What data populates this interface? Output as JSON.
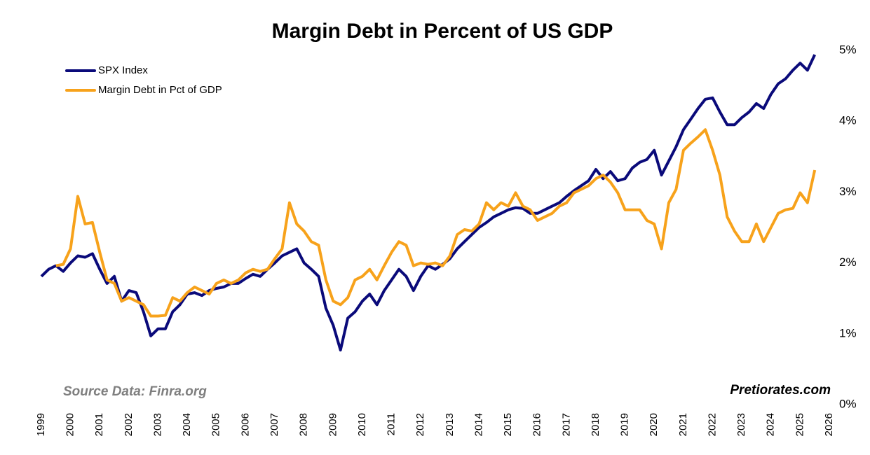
{
  "chart_data": {
    "type": "line",
    "title": "Margin Debt in Percent of US GDP",
    "annotations": [
      "Source Data: Finra.org",
      "Pretiorates.com"
    ],
    "legend": "top-left",
    "x": [
      1999,
      1999.25,
      1999.5,
      1999.75,
      2000,
      2000.25,
      2000.5,
      2000.75,
      2001,
      2001.25,
      2001.5,
      2001.75,
      2002,
      2002.25,
      2002.5,
      2002.75,
      2003,
      2003.25,
      2003.5,
      2003.75,
      2004,
      2004.25,
      2004.5,
      2004.75,
      2005,
      2005.25,
      2005.5,
      2005.75,
      2006,
      2006.25,
      2006.5,
      2006.75,
      2007,
      2007.25,
      2007.5,
      2007.75,
      2008,
      2008.25,
      2008.5,
      2008.75,
      2009,
      2009.25,
      2009.5,
      2009.75,
      2010,
      2010.25,
      2010.5,
      2010.75,
      2011,
      2011.25,
      2011.5,
      2011.75,
      2012,
      2012.25,
      2012.5,
      2012.75,
      2013,
      2013.25,
      2013.5,
      2013.75,
      2014,
      2014.25,
      2014.5,
      2014.75,
      2015,
      2015.25,
      2015.5,
      2015.75,
      2016,
      2016.25,
      2016.5,
      2016.75,
      2017,
      2017.25,
      2017.5,
      2017.75,
      2018,
      2018.25,
      2018.5,
      2018.75,
      2019,
      2019.25,
      2019.5,
      2019.75,
      2020,
      2020.25,
      2020.5,
      2020.75,
      2021,
      2021.25,
      2021.5,
      2021.75,
      2022,
      2022.25,
      2022.5,
      2022.75,
      2023,
      2023.25,
      2023.5,
      2023.75,
      2024,
      2024.25,
      2024.5,
      2024.75,
      2025,
      2025.25,
      2025.5
    ],
    "series": [
      {
        "name": "SPX Index",
        "color": "#0a0a7a",
        "values": [
          1.81,
          1.91,
          1.96,
          1.88,
          2.0,
          2.1,
          2.08,
          2.13,
          1.91,
          1.71,
          1.81,
          1.46,
          1.61,
          1.58,
          1.31,
          0.97,
          1.07,
          1.07,
          1.31,
          1.41,
          1.56,
          1.58,
          1.54,
          1.61,
          1.64,
          1.66,
          1.71,
          1.71,
          1.78,
          1.84,
          1.81,
          1.91,
          2.0,
          2.1,
          2.15,
          2.2,
          2.0,
          1.91,
          1.81,
          1.36,
          1.12,
          0.77,
          1.22,
          1.31,
          1.46,
          1.56,
          1.41,
          1.61,
          1.76,
          1.91,
          1.81,
          1.61,
          1.81,
          1.96,
          1.91,
          1.98,
          2.06,
          2.2,
          2.3,
          2.4,
          2.5,
          2.57,
          2.65,
          2.7,
          2.75,
          2.78,
          2.77,
          2.7,
          2.7,
          2.75,
          2.8,
          2.85,
          2.94,
          3.02,
          3.09,
          3.16,
          3.32,
          3.19,
          3.29,
          3.16,
          3.19,
          3.34,
          3.42,
          3.46,
          3.59,
          3.24,
          3.44,
          3.64,
          3.88,
          4.03,
          4.18,
          4.31,
          4.33,
          4.13,
          3.95,
          3.95,
          4.05,
          4.13,
          4.25,
          4.18,
          4.38,
          4.53,
          4.6,
          4.72,
          4.82,
          4.72,
          4.94
        ]
      },
      {
        "name": "Margin Debt in Pct of GDP",
        "color": "#f7a21b",
        "values": [
          null,
          null,
          1.96,
          1.98,
          2.2,
          2.94,
          2.55,
          2.57,
          2.15,
          1.76,
          1.71,
          1.46,
          1.51,
          1.46,
          1.41,
          1.25,
          1.25,
          1.26,
          1.51,
          1.46,
          1.58,
          1.66,
          1.61,
          1.56,
          1.71,
          1.76,
          1.71,
          1.76,
          1.86,
          1.91,
          1.88,
          1.91,
          2.06,
          2.2,
          2.85,
          2.55,
          2.45,
          2.3,
          2.25,
          1.76,
          1.46,
          1.41,
          1.51,
          1.76,
          1.81,
          1.91,
          1.76,
          1.96,
          2.15,
          2.3,
          2.25,
          1.96,
          2.0,
          1.98,
          2.0,
          1.96,
          2.1,
          2.4,
          2.47,
          2.45,
          2.55,
          2.85,
          2.75,
          2.85,
          2.8,
          2.99,
          2.8,
          2.75,
          2.6,
          2.65,
          2.7,
          2.8,
          2.85,
          2.99,
          3.04,
          3.09,
          3.19,
          3.24,
          3.14,
          2.99,
          2.75,
          2.75,
          2.75,
          2.6,
          2.55,
          2.2,
          2.85,
          3.04,
          3.59,
          3.69,
          3.78,
          3.88,
          3.59,
          3.24,
          2.65,
          2.45,
          2.3,
          2.3,
          2.55,
          2.3,
          2.5,
          2.7,
          2.75,
          2.77,
          2.99,
          2.85,
          3.31
        ]
      }
    ],
    "xlim": [
      1999,
      2026
    ],
    "xticks": [
      1999,
      2000,
      2001,
      2002,
      2003,
      2004,
      2005,
      2006,
      2007,
      2008,
      2009,
      2010,
      2011,
      2012,
      2013,
      2014,
      2015,
      2016,
      2017,
      2018,
      2019,
      2020,
      2021,
      2022,
      2023,
      2024,
      2025,
      2026
    ],
    "ylim": [
      0,
      5
    ],
    "yticks": [
      {
        "value": 0,
        "label": "0%"
      },
      {
        "value": 1,
        "label": "1%"
      },
      {
        "value": 2,
        "label": "2%"
      },
      {
        "value": 3,
        "label": "3%"
      },
      {
        "value": 4,
        "label": "4%"
      },
      {
        "value": 5,
        "label": "5%"
      }
    ]
  }
}
